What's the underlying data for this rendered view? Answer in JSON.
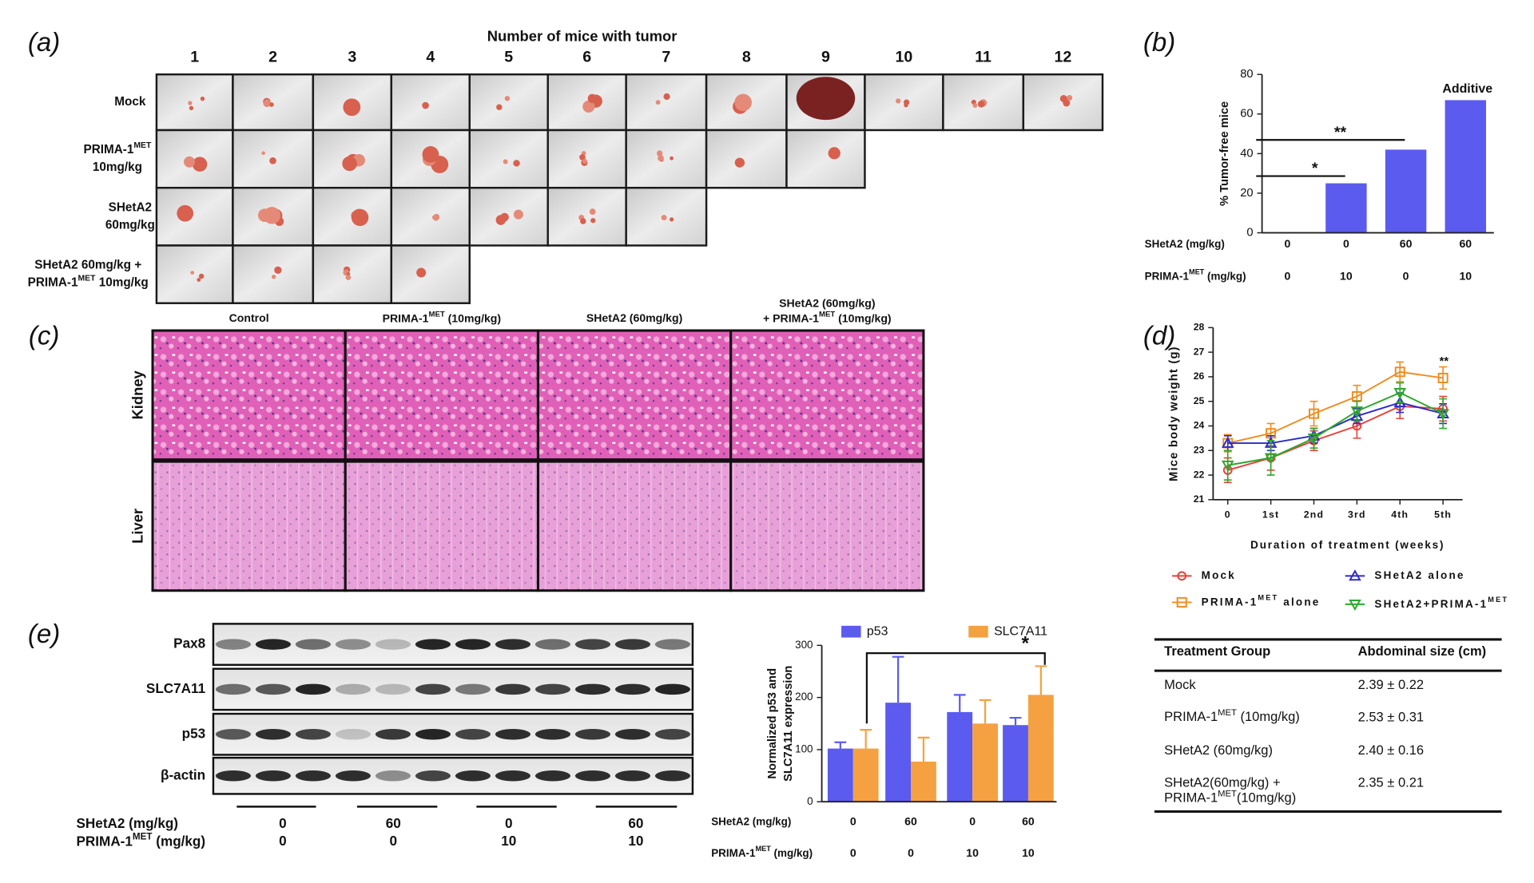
{
  "panel_labels": [
    "(a)",
    "(b)",
    "(c)",
    "(d)",
    "(e)"
  ],
  "panel_a": {
    "title": "Number of mice with tumor",
    "columns": [
      "1",
      "2",
      "3",
      "4",
      "5",
      "6",
      "7",
      "8",
      "9",
      "10",
      "11",
      "12"
    ],
    "rows": [
      {
        "label": [
          "Mock"
        ],
        "photos": 12
      },
      {
        "label": [
          [
            "PRIMA-1",
            {
              "sup": "MET"
            }
          ],
          "10mg/kg"
        ],
        "photos": 9
      },
      {
        "label": [
          "SHetA2",
          "60mg/kg"
        ],
        "photos": 7
      },
      {
        "label": [
          "SHetA2 60mg/kg +",
          [
            "PRIMA-1",
            {
              "sup": "MET"
            },
            " 10mg/kg"
          ]
        ],
        "photos": 4
      }
    ]
  },
  "panel_c": {
    "columns": [
      [
        "Control"
      ],
      [
        [
          "PRIMA-1",
          {
            "sup": "MET"
          },
          " (10mg/kg)"
        ]
      ],
      [
        "SHetA2 (60mg/kg)"
      ],
      [
        "SHetA2 (60mg/kg)",
        [
          "+ PRIMA-1",
          {
            "sup": "MET"
          },
          " (10mg/kg)"
        ]
      ]
    ],
    "rows": [
      "Kidney",
      "Liver"
    ]
  },
  "blot": {
    "rows": [
      "Pax8",
      "SLC7A11",
      "p53",
      "β-actin"
    ],
    "dose_rows": [
      {
        "label": "SHetA2 (mg/kg)",
        "values": [
          "0",
          "60",
          "0",
          "60"
        ]
      },
      {
        "label": [
          "PRIMA-1",
          {
            "sup": "MET"
          },
          " (mg/kg)"
        ],
        "values": [
          "0",
          "0",
          "10",
          "10"
        ]
      }
    ]
  },
  "table": {
    "header": [
      "Treatment Group",
      "Abdominal size (cm)"
    ],
    "rows": [
      [
        [
          "Mock"
        ],
        "2.39 ± 0.22"
      ],
      [
        [
          [
            "PRIMA-1",
            {
              "sup": "MET"
            },
            " (10mg/kg)"
          ]
        ],
        "2.53 ± 0.31"
      ],
      [
        [
          "SHetA2 (60mg/kg)"
        ],
        "2.40 ± 0.16"
      ],
      [
        [
          "SHetA2(60mg/kg) +",
          [
            "PRIMA-1",
            {
              "sup": "MET"
            },
            "(10mg/kg)"
          ]
        ],
        "2.35 ± 0.21"
      ]
    ]
  },
  "chart_data": [
    {
      "type": "bar",
      "y_label": [
        "% Tumor-free mice"
      ],
      "values": [
        0,
        25,
        42,
        67
      ],
      "color": "#5b5bef",
      "ylim": [
        0,
        80
      ],
      "yticks": [
        0,
        20,
        40,
        60,
        80
      ],
      "annotations": [
        "*",
        "**",
        "Additive"
      ],
      "dose_rows": [
        {
          "label": "SHetA2 (mg/kg)",
          "values": [
            "0",
            "0",
            "60",
            "60"
          ]
        },
        {
          "label": [
            "PRIMA-1",
            {
              "sup": "MET"
            },
            " (mg/kg)"
          ],
          "values": [
            "0",
            "10",
            "0",
            "10"
          ]
        }
      ]
    },
    {
      "type": "line",
      "y_label": [
        "Mice body weight (g)"
      ],
      "x_label": "Duration of treatment (weeks)",
      "categories": [
        "0",
        "1st",
        "2nd",
        "3rd",
        "4th",
        "5th"
      ],
      "ylim": [
        21,
        28
      ],
      "yticks": [
        21,
        22,
        23,
        24,
        25,
        26,
        27,
        28
      ],
      "series": [
        {
          "name": "Mock",
          "color": "#e8403a",
          "marker": "circle",
          "values": [
            22.2,
            22.7,
            23.4,
            24.0,
            24.8,
            24.7
          ],
          "errors": [
            0.5,
            0.5,
            0.4,
            0.5,
            0.5,
            0.5
          ]
        },
        {
          "name": [
            "PRIMA-1",
            {
              "sup": "MET"
            },
            " alone"
          ],
          "color": "#f08c1e",
          "marker": "square",
          "values": [
            23.3,
            23.7,
            24.5,
            25.2,
            26.2,
            25.95
          ],
          "errors": [
            0.35,
            0.4,
            0.5,
            0.45,
            0.4,
            0.45
          ]
        },
        {
          "name": "SHetA2 alone",
          "color": "#2c2cc8",
          "marker": "triangle",
          "values": [
            23.3,
            23.3,
            23.6,
            24.4,
            24.95,
            24.5
          ],
          "errors": [
            0.3,
            0.3,
            0.3,
            0.3,
            0.4,
            0.4
          ]
        },
        {
          "name": [
            "SHetA2+PRIMA-1",
            {
              "sup": "MET"
            }
          ],
          "color": "#2ca82c",
          "marker": "triangle-down",
          "values": [
            22.4,
            22.7,
            23.5,
            24.6,
            25.35,
            24.5
          ],
          "errors": [
            0.6,
            0.7,
            0.4,
            0.4,
            0.4,
            0.6
          ]
        }
      ],
      "annotations": [
        "**"
      ]
    },
    {
      "type": "bar",
      "y_label": [
        "Normalized p53 and",
        "SLC7A11 expression"
      ],
      "ylim": [
        0,
        300
      ],
      "yticks": [
        0,
        100,
        200,
        300
      ],
      "series": [
        {
          "name": "p53",
          "color": "#5b5bef",
          "values": [
            102,
            190,
            172,
            147
          ],
          "errors": [
            12,
            88,
            33,
            14
          ]
        },
        {
          "name": "SLC7A11",
          "color": "#f5a142",
          "values": [
            102,
            77,
            150,
            205
          ],
          "errors": [
            36,
            46,
            45,
            55
          ]
        }
      ],
      "annotations": [
        "*"
      ],
      "dose_rows": [
        {
          "label": "SHetA2 (mg/kg)",
          "values": [
            "0",
            "60",
            "0",
            "60"
          ]
        },
        {
          "label": [
            "PRIMA-1",
            {
              "sup": "MET"
            },
            " (mg/kg)"
          ],
          "values": [
            "0",
            "0",
            "10",
            "10"
          ]
        }
      ]
    }
  ]
}
